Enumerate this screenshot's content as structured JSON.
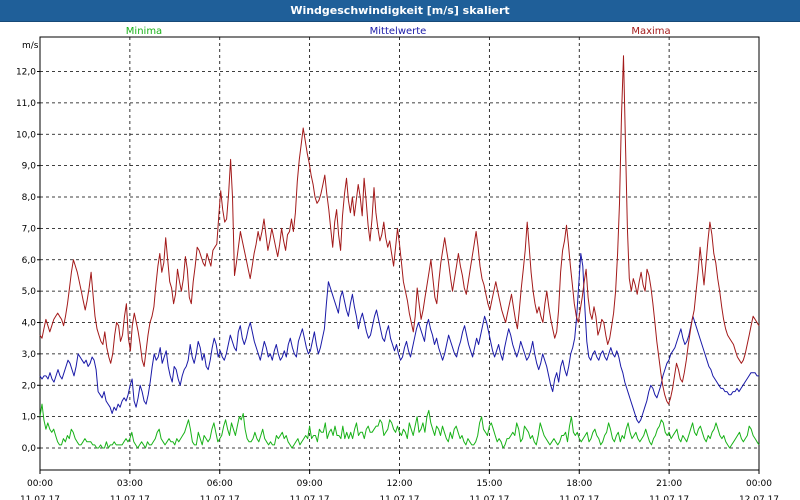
{
  "window": {
    "title": "Windgeschwindigkeit [m/s] skaliert"
  },
  "colors": {
    "titlebar": "#1f5f99",
    "minima": "#19b219",
    "mittelwerte": "#1a1aa8",
    "maxima": "#a31a1a",
    "grid": "#000000"
  },
  "chart_data": {
    "type": "line",
    "ylabel": "m/s",
    "ylim": [
      -0.7,
      13.1
    ],
    "yticks": [
      "0,0",
      "1,0",
      "2,0",
      "3,0",
      "4,0",
      "5,0",
      "6,0",
      "7,0",
      "8,0",
      "9,0",
      "10,0",
      "11,0",
      "12,0"
    ],
    "xlim": [
      0,
      24
    ],
    "xticks": [
      {
        "time": "00:00",
        "date": "11.07.17"
      },
      {
        "time": "03:00",
        "date": "11.07.17"
      },
      {
        "time": "06:00",
        "date": "11.07.17"
      },
      {
        "time": "09:00",
        "date": "11.07.17"
      },
      {
        "time": "12:00",
        "date": "11.07.17"
      },
      {
        "time": "15:00",
        "date": "11.07.17"
      },
      {
        "time": "18:00",
        "date": "11.07.17"
      },
      {
        "time": "21:00",
        "date": "11.07.17"
      },
      {
        "time": "00:00",
        "date": "12.07.17"
      }
    ],
    "grid": true,
    "legend_placement": "top",
    "series": [
      {
        "name": "Minima",
        "color_key": "minima",
        "values": [
          1.0,
          1.4,
          0.9,
          0.6,
          0.8,
          0.6,
          0.5,
          0.6,
          0.4,
          0.2,
          0.1,
          0.1,
          0.3,
          0.2,
          0.4,
          0.3,
          0.6,
          0.5,
          0.3,
          0.2,
          0.1,
          0.1,
          0.2,
          0.3,
          0.2,
          0.2,
          0.2,
          0.1,
          0.1,
          0.0,
          0.0,
          0.1,
          0.0,
          0.0,
          0.2,
          0.0,
          0.1,
          0.1,
          0.2,
          0.1,
          0.1,
          0.1,
          0.1,
          0.2,
          0.3,
          0.2,
          0.3,
          0.5,
          0.2,
          0.1,
          0.0,
          0.1,
          0.2,
          0.1,
          0.0,
          0.2,
          0.1,
          0.1,
          0.2,
          0.3,
          0.5,
          0.6,
          0.3,
          0.2,
          0.1,
          0.2,
          0.3,
          0.2,
          0.2,
          0.1,
          0.3,
          0.2,
          0.3,
          0.4,
          0.5,
          0.7,
          0.9,
          0.6,
          0.2,
          0.1,
          0.1,
          0.5,
          0.3,
          0.1,
          0.4,
          0.3,
          0.2,
          0.3,
          0.6,
          0.8,
          0.5,
          0.2,
          0.3,
          0.4,
          0.7,
          0.9,
          0.6,
          0.4,
          0.8,
          0.6,
          0.4,
          0.7,
          1.0,
          0.9,
          1.1,
          0.6,
          0.3,
          0.2,
          0.2,
          0.3,
          0.5,
          0.3,
          0.2,
          0.4,
          0.6,
          0.3,
          0.2,
          0.1,
          0.2,
          0.1,
          0.1,
          0.4,
          0.3,
          0.4,
          0.5,
          0.3,
          0.4,
          0.2,
          0.1,
          0.0,
          0.1,
          0.2,
          0.3,
          0.1,
          0.2,
          0.3,
          0.4,
          0.3,
          0.7,
          0.3,
          0.4,
          0.4,
          0.2,
          0.6,
          0.5,
          0.5,
          0.8,
          0.3,
          0.5,
          0.6,
          0.4,
          0.7,
          0.4,
          0.4,
          0.3,
          0.7,
          0.3,
          0.5,
          0.3,
          0.5,
          0.3,
          0.6,
          0.8,
          0.4,
          0.5,
          0.5,
          0.3,
          0.6,
          0.7,
          0.5,
          0.5,
          0.6,
          0.7,
          0.7,
          0.9,
          0.8,
          0.4,
          0.5,
          0.6,
          0.9,
          0.8,
          0.6,
          0.5,
          0.7,
          0.5,
          0.4,
          0.6,
          0.5,
          0.3,
          0.8,
          0.6,
          0.4,
          0.7,
          1.0,
          0.5,
          0.6,
          0.8,
          0.5,
          1.0,
          1.2,
          0.8,
          0.6,
          0.4,
          0.7,
          0.6,
          0.4,
          0.7,
          0.5,
          0.3,
          0.2,
          0.5,
          0.3,
          0.6,
          0.7,
          0.5,
          0.3,
          0.4,
          0.2,
          0.1,
          0.3,
          0.2,
          0.1,
          0.1,
          0.2,
          0.4,
          0.8,
          1.0,
          0.6,
          0.5,
          0.4,
          0.7,
          0.8,
          0.6,
          0.4,
          0.2,
          0.3,
          0.2,
          0.0,
          0.1,
          0.3,
          0.3,
          0.4,
          0.5,
          0.4,
          0.8,
          0.6,
          0.2,
          0.3,
          0.7,
          0.6,
          0.5,
          0.3,
          0.4,
          0.2,
          0.1,
          0.4,
          0.8,
          0.6,
          0.4,
          0.3,
          0.2,
          0.1,
          0.2,
          0.3,
          0.2,
          0.1,
          0.2,
          0.4,
          0.4,
          0.5,
          0.2,
          0.7,
          1.0,
          0.5,
          0.4,
          0.5,
          0.3,
          0.2,
          0.3,
          0.4,
          0.5,
          0.2,
          0.3,
          0.5,
          0.6,
          0.4,
          0.3,
          0.1,
          0.2,
          0.4,
          0.5,
          0.8,
          0.6,
          0.3,
          0.2,
          0.4,
          0.5,
          0.2,
          0.4,
          0.3,
          0.6,
          0.8,
          0.5,
          0.3,
          0.4,
          0.5,
          0.3,
          0.2,
          0.3,
          0.4,
          0.6,
          0.4,
          0.2,
          0.1,
          0.3,
          0.4,
          0.6,
          0.7,
          0.9,
          0.8,
          0.5,
          0.4,
          0.5,
          0.3,
          0.4,
          0.5,
          0.6,
          0.3,
          0.2,
          0.4,
          0.3,
          0.2,
          0.4,
          0.6,
          0.8,
          0.5,
          0.4,
          0.6,
          0.7,
          0.5,
          0.3,
          0.2,
          0.4,
          0.3,
          0.5,
          0.6,
          0.8,
          0.6,
          0.4,
          0.3,
          0.4,
          0.2,
          0.1,
          0.0,
          0.1,
          0.2,
          0.3,
          0.4,
          0.5,
          0.3,
          0.2,
          0.3,
          0.4,
          0.7,
          0.6,
          0.4,
          0.3,
          0.2,
          0.1
        ]
      },
      {
        "name": "Mittelwerte",
        "color_key": "mittelwerte",
        "values": [
          2.3,
          2.2,
          2.3,
          2.3,
          2.2,
          2.4,
          2.2,
          2.1,
          2.3,
          2.5,
          2.3,
          2.2,
          2.4,
          2.6,
          2.8,
          2.7,
          2.5,
          2.3,
          2.6,
          3.0,
          2.9,
          2.8,
          2.7,
          2.8,
          2.6,
          2.7,
          2.9,
          2.8,
          2.5,
          1.8,
          1.7,
          1.6,
          1.8,
          1.5,
          1.4,
          1.3,
          1.1,
          1.3,
          1.2,
          1.4,
          1.3,
          1.5,
          1.6,
          1.5,
          1.7,
          2.0,
          2.2,
          1.5,
          1.3,
          1.6,
          2.0,
          1.8,
          1.5,
          1.4,
          1.7,
          2.1,
          2.6,
          3.0,
          2.8,
          2.9,
          3.2,
          2.7,
          2.9,
          3.1,
          2.6,
          2.3,
          2.1,
          2.6,
          2.5,
          2.2,
          2.0,
          2.3,
          2.5,
          2.6,
          2.8,
          3.3,
          2.9,
          2.7,
          3.0,
          3.4,
          3.2,
          2.8,
          3.0,
          2.6,
          2.5,
          2.8,
          3.2,
          3.5,
          3.3,
          2.9,
          3.1,
          2.9,
          2.8,
          3.0,
          3.3,
          3.6,
          3.4,
          3.2,
          3.1,
          3.7,
          3.9,
          3.5,
          3.3,
          3.5,
          3.8,
          4.0,
          3.7,
          3.4,
          3.2,
          3.0,
          2.8,
          3.1,
          3.4,
          3.2,
          2.9,
          3.0,
          2.8,
          3.1,
          3.3,
          3.0,
          2.8,
          2.9,
          3.1,
          2.9,
          3.3,
          3.5,
          3.2,
          3.0,
          2.9,
          3.4,
          3.6,
          3.8,
          3.5,
          3.2,
          3.0,
          3.1,
          3.4,
          3.7,
          3.3,
          3.0,
          3.2,
          3.5,
          3.8,
          4.6,
          5.3,
          5.1,
          4.9,
          4.7,
          4.5,
          4.3,
          4.8,
          5.0,
          4.7,
          4.4,
          4.2,
          4.6,
          4.9,
          4.5,
          4.2,
          3.8,
          4.1,
          4.3,
          4.0,
          3.7,
          3.5,
          3.6,
          3.9,
          4.2,
          4.4,
          4.1,
          3.8,
          3.5,
          3.4,
          3.7,
          3.9,
          3.5,
          3.3,
          3.1,
          3.3,
          3.0,
          2.8,
          2.9,
          3.2,
          3.4,
          3.1,
          2.9,
          3.2,
          3.5,
          3.8,
          4.0,
          3.8,
          3.6,
          3.4,
          3.9,
          4.1,
          3.8,
          3.6,
          3.3,
          3.5,
          3.2,
          3.0,
          2.8,
          3.0,
          3.3,
          3.6,
          3.4,
          3.2,
          3.0,
          2.9,
          3.2,
          3.4,
          3.7,
          3.9,
          3.6,
          3.3,
          3.1,
          2.9,
          3.2,
          3.5,
          3.3,
          3.6,
          3.9,
          4.2,
          4.0,
          3.7,
          3.4,
          3.1,
          2.9,
          3.1,
          3.3,
          3.0,
          2.8,
          3.2,
          3.5,
          3.8,
          3.6,
          3.3,
          3.1,
          2.9,
          3.1,
          3.4,
          3.2,
          3.0,
          2.8,
          2.9,
          3.1,
          3.4,
          3.0,
          2.7,
          2.5,
          2.7,
          3.0,
          2.8,
          2.6,
          2.3,
          2.0,
          1.8,
          2.2,
          2.4,
          2.1,
          2.6,
          2.8,
          2.5,
          2.3,
          2.6,
          3.0,
          3.2,
          3.5,
          4.2,
          5.2,
          6.2,
          5.8,
          4.5,
          3.4,
          2.9,
          2.8,
          3.0,
          3.1,
          2.9,
          2.8,
          3.0,
          3.1,
          2.9,
          2.8,
          3.0,
          3.2,
          3.0,
          2.9,
          3.1,
          2.9,
          2.6,
          2.4,
          2.1,
          1.9,
          1.7,
          1.5,
          1.3,
          1.1,
          0.9,
          0.8,
          0.9,
          1.1,
          1.3,
          1.5,
          1.8,
          2.0,
          1.9,
          1.7,
          1.6,
          1.8,
          2.0,
          2.3,
          2.5,
          2.7,
          2.8,
          3.0,
          3.1,
          3.2,
          3.4,
          3.6,
          3.8,
          3.5,
          3.3,
          3.4,
          3.6,
          3.9,
          4.2,
          4.0,
          3.8,
          3.6,
          3.4,
          3.2,
          3.0,
          2.8,
          2.6,
          2.5,
          2.3,
          2.2,
          2.1,
          2.0,
          1.9,
          1.9,
          1.8,
          1.8,
          1.7,
          1.7,
          1.8,
          1.8,
          1.9,
          1.8,
          1.9,
          2.0,
          2.1,
          2.2,
          2.3,
          2.4,
          2.4,
          2.4,
          2.3,
          2.3
        ]
      },
      {
        "name": "Maxima",
        "color_key": "maxima",
        "values": [
          3.6,
          3.5,
          3.8,
          4.1,
          3.9,
          3.7,
          3.9,
          4.1,
          4.2,
          4.3,
          4.2,
          4.1,
          3.9,
          4.2,
          4.6,
          5.1,
          5.6,
          6.0,
          5.8,
          5.6,
          5.3,
          5.0,
          4.7,
          4.4,
          4.7,
          5.1,
          5.6,
          4.9,
          4.2,
          3.8,
          3.6,
          3.4,
          3.3,
          3.7,
          3.2,
          2.9,
          2.7,
          3.0,
          3.6,
          4.0,
          3.9,
          3.4,
          3.6,
          4.2,
          4.6,
          3.5,
          3.1,
          3.9,
          4.3,
          4.0,
          3.7,
          3.3,
          2.8,
          2.6,
          3.1,
          3.6,
          4.0,
          4.2,
          4.5,
          5.2,
          5.8,
          6.2,
          5.6,
          5.9,
          6.7,
          6.0,
          5.3,
          5.1,
          4.6,
          4.9,
          5.7,
          5.3,
          5.0,
          5.4,
          6.1,
          5.7,
          4.8,
          4.6,
          5.3,
          5.8,
          6.4,
          6.3,
          6.1,
          5.9,
          5.8,
          6.2,
          6.0,
          5.8,
          6.3,
          6.4,
          6.5,
          7.4,
          8.2,
          7.6,
          7.2,
          7.3,
          8.1,
          9.2,
          8.0,
          5.5,
          5.9,
          6.4,
          6.9,
          6.6,
          6.3,
          6.0,
          5.7,
          5.4,
          5.8,
          6.2,
          6.5,
          6.9,
          6.6,
          6.9,
          7.3,
          6.8,
          6.3,
          6.6,
          7.0,
          6.7,
          6.4,
          6.1,
          6.5,
          7.0,
          6.6,
          6.3,
          6.8,
          6.9,
          7.3,
          6.9,
          7.5,
          8.5,
          9.2,
          9.7,
          10.2,
          9.8,
          9.4,
          9.1,
          8.7,
          8.4,
          8.0,
          7.8,
          7.9,
          8.1,
          8.4,
          8.7,
          8.1,
          7.6,
          7.0,
          6.4,
          7.2,
          7.6,
          6.8,
          6.3,
          7.4,
          8.1,
          8.6,
          7.9,
          7.5,
          8.0,
          7.4,
          7.9,
          8.4,
          8.0,
          7.4,
          8.6,
          7.9,
          7.1,
          6.6,
          7.3,
          8.3,
          7.5,
          7.0,
          6.6,
          6.8,
          7.2,
          6.7,
          6.4,
          6.6,
          6.2,
          5.8,
          6.4,
          7.0,
          6.5,
          5.9,
          5.3,
          5.0,
          4.7,
          4.3,
          4.0,
          3.7,
          4.2,
          5.1,
          4.6,
          4.1,
          4.4,
          4.8,
          5.2,
          5.6,
          6.0,
          5.4,
          4.8,
          4.6,
          5.3,
          5.9,
          6.3,
          6.7,
          6.3,
          5.9,
          5.4,
          5.0,
          5.4,
          5.8,
          6.2,
          5.8,
          5.5,
          5.1,
          4.9,
          5.3,
          5.7,
          6.1,
          6.5,
          6.9,
          6.4,
          5.8,
          5.4,
          5.2,
          4.9,
          4.6,
          4.4,
          4.7,
          5.0,
          5.3,
          5.0,
          4.7,
          4.4,
          4.2,
          4.0,
          4.3,
          4.6,
          4.9,
          4.5,
          4.1,
          3.8,
          4.4,
          5.1,
          5.7,
          6.3,
          7.2,
          6.4,
          5.6,
          5.0,
          4.6,
          4.3,
          4.5,
          4.2,
          4.0,
          4.6,
          5.0,
          4.5,
          4.1,
          3.8,
          3.5,
          3.7,
          4.4,
          5.6,
          6.3,
          6.6,
          7.1,
          6.5,
          5.8,
          5.2,
          4.6,
          4.2,
          4.0,
          4.4,
          4.8,
          5.3,
          5.7,
          4.8,
          4.3,
          4.1,
          4.5,
          4.2,
          3.6,
          3.8,
          4.1,
          4.0,
          3.6,
          3.3,
          3.5,
          3.9,
          4.3,
          5.0,
          6.2,
          7.8,
          10.6,
          12.5,
          9.8,
          7.0,
          5.4,
          5.0,
          5.4,
          5.2,
          4.9,
          5.3,
          5.6,
          5.2,
          5.0,
          5.7,
          5.5,
          5.1,
          4.6,
          4.0,
          3.4,
          2.9,
          2.4,
          2.0,
          1.7,
          1.5,
          1.4,
          1.6,
          1.9,
          2.3,
          2.7,
          2.5,
          2.2,
          2.1,
          2.4,
          2.8,
          3.3,
          3.7,
          4.1,
          4.4,
          5.0,
          5.6,
          6.4,
          5.8,
          5.2,
          5.9,
          6.6,
          7.2,
          6.8,
          6.2,
          5.9,
          5.4,
          5.0,
          4.5,
          4.1,
          3.8,
          3.6,
          3.5,
          3.4,
          3.3,
          3.1,
          2.9,
          2.8,
          2.7,
          2.8,
          3.0,
          3.3,
          3.6,
          3.9,
          4.2,
          4.1,
          4.0,
          3.9
        ]
      }
    ]
  }
}
